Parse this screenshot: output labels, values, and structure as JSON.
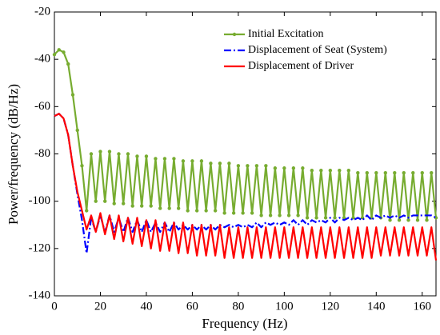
{
  "chart_data": {
    "type": "line",
    "xlabel": "Frequency (Hz)",
    "ylabel": "Power/frequency (dB/Hz)",
    "x": [
      0,
      2,
      4,
      6,
      8,
      10,
      12,
      14,
      16,
      18,
      20,
      22,
      24,
      26,
      28,
      30,
      32,
      34,
      36,
      38,
      40,
      42,
      44,
      46,
      48,
      50,
      52,
      54,
      56,
      58,
      60,
      62,
      64,
      66,
      68,
      70,
      72,
      74,
      76,
      78,
      80,
      82,
      84,
      86,
      88,
      90,
      92,
      94,
      96,
      98,
      100,
      102,
      104,
      106,
      108,
      110,
      112,
      114,
      116,
      118,
      120,
      122,
      124,
      126,
      128,
      130,
      132,
      134,
      136,
      138,
      140,
      142,
      144,
      146,
      148,
      150,
      152,
      154,
      156,
      158,
      160,
      162,
      164,
      166
    ],
    "series": [
      {
        "name": "Initial Excitation",
        "color": "#77ac30",
        "linestyle": "solid",
        "marker": "o",
        "values": [
          -38,
          -36,
          -37,
          -42,
          -55,
          -70,
          -85,
          -104,
          -80,
          -100,
          -79,
          -100,
          -79,
          -101,
          -80,
          -101,
          -80,
          -102,
          -81,
          -102,
          -81,
          -102,
          -82,
          -103,
          -82,
          -103,
          -82,
          -103,
          -83,
          -104,
          -83,
          -104,
          -83,
          -104,
          -84,
          -104,
          -84,
          -105,
          -84,
          -105,
          -85,
          -105,
          -85,
          -105,
          -85,
          -106,
          -85,
          -106,
          -86,
          -106,
          -86,
          -106,
          -86,
          -106,
          -86,
          -107,
          -87,
          -107,
          -87,
          -107,
          -87,
          -107,
          -87,
          -107,
          -87,
          -107,
          -88,
          -107,
          -88,
          -107,
          -88,
          -107,
          -88,
          -108,
          -88,
          -108,
          -88,
          -108,
          -88,
          -108,
          -88,
          -108,
          -88,
          -107
        ]
      },
      {
        "name": "Displacement of Seat (System)",
        "color": "#0000ff",
        "linestyle": "dashdot",
        "marker": null,
        "values": [
          -64,
          -63,
          -65,
          -72,
          -85,
          -97,
          -108,
          -122,
          -107,
          -113,
          -106,
          -113,
          -106,
          -113,
          -107,
          -113,
          -107,
          -113,
          -108,
          -113,
          -108,
          -113,
          -109,
          -113,
          -109,
          -113,
          -109,
          -112,
          -110,
          -112,
          -110,
          -112,
          -110,
          -112,
          -110,
          -112,
          -110,
          -111,
          -110,
          -111,
          -110,
          -111,
          -110,
          -111,
          -109,
          -111,
          -109,
          -110,
          -109,
          -110,
          -109,
          -110,
          -108,
          -110,
          -108,
          -110,
          -108,
          -109,
          -108,
          -109,
          -107,
          -109,
          -107,
          -108,
          -107,
          -108,
          -107,
          -108,
          -106,
          -108,
          -106,
          -107,
          -106,
          -107,
          -106,
          -107,
          -106,
          -107,
          -106,
          -106,
          -106,
          -106,
          -106,
          -107
        ]
      },
      {
        "name": "Displacement of Driver",
        "color": "#ff0000",
        "linestyle": "solid",
        "marker": null,
        "values": [
          -64,
          -63,
          -65,
          -72,
          -85,
          -96,
          -104,
          -112,
          -106,
          -113,
          -105,
          -114,
          -106,
          -116,
          -106,
          -117,
          -107,
          -118,
          -107,
          -119,
          -108,
          -120,
          -108,
          -121,
          -109,
          -121,
          -109,
          -122,
          -109,
          -122,
          -110,
          -123,
          -110,
          -123,
          -110,
          -123,
          -110,
          -124,
          -111,
          -124,
          -111,
          -124,
          -111,
          -124,
          -111,
          -124,
          -111,
          -124,
          -111,
          -124,
          -111,
          -124,
          -111,
          -124,
          -111,
          -124,
          -111,
          -124,
          -111,
          -124,
          -111,
          -124,
          -111,
          -124,
          -111,
          -124,
          -111,
          -124,
          -111,
          -124,
          -111,
          -123,
          -111,
          -123,
          -111,
          -123,
          -111,
          -123,
          -111,
          -123,
          -111,
          -123,
          -111,
          -125
        ]
      }
    ],
    "xlim": [
      0,
      166
    ],
    "xticks": [
      0,
      20,
      40,
      60,
      80,
      100,
      120,
      140,
      160
    ],
    "ylim": [
      -140,
      -20
    ],
    "yticks": [
      -140,
      -120,
      -100,
      -80,
      -60,
      -40,
      -20
    ],
    "grid": false,
    "legend": "upper right"
  }
}
